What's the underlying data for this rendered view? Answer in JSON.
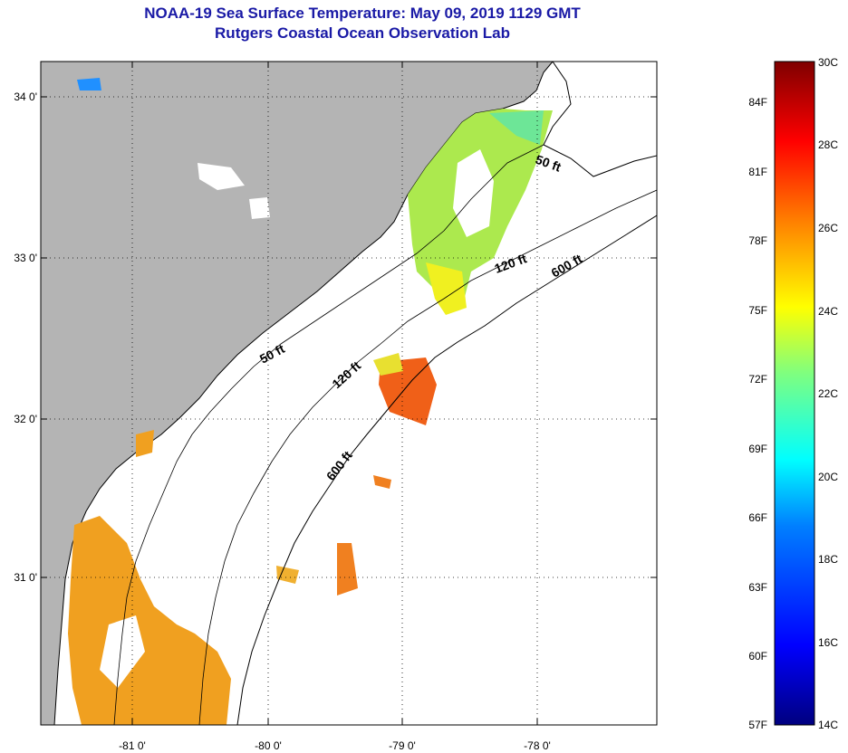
{
  "header": {
    "title": "NOAA-19 Sea Surface Temperature:  May 09, 2019 1129 GMT",
    "subtitle": "Rutgers Coastal Ocean Observation Lab"
  },
  "map": {
    "lat_labels": [
      "34 0'",
      "33 0'",
      "32 0'",
      "31 0'"
    ],
    "lon_labels": [
      "-81 0'",
      "-80 0'",
      "-79 0'",
      "-78 0'"
    ],
    "contours": [
      "50 ft",
      "120 ft",
      "600 ft",
      "50 ft",
      "120 ft",
      "600 ft"
    ],
    "colors": {
      "land": "#b4b4b4",
      "ocean_nodata": "#ffffff",
      "coast": "#000000"
    }
  },
  "colorbar": {
    "fahrenheit_labels": [
      "84F",
      "81F",
      "78F",
      "75F",
      "72F",
      "69F",
      "66F",
      "63F",
      "60F",
      "57F"
    ],
    "celsius_labels": [
      "30C",
      "28C",
      "26C",
      "24C",
      "22C",
      "20C",
      "18C",
      "16C",
      "14C"
    ],
    "range_c": [
      14,
      30
    ],
    "colors": [
      "#00007f",
      "#0000ff",
      "#007fff",
      "#00ffff",
      "#7fff7f",
      "#ffff00",
      "#ff7f00",
      "#ff0000",
      "#7f0000"
    ]
  }
}
